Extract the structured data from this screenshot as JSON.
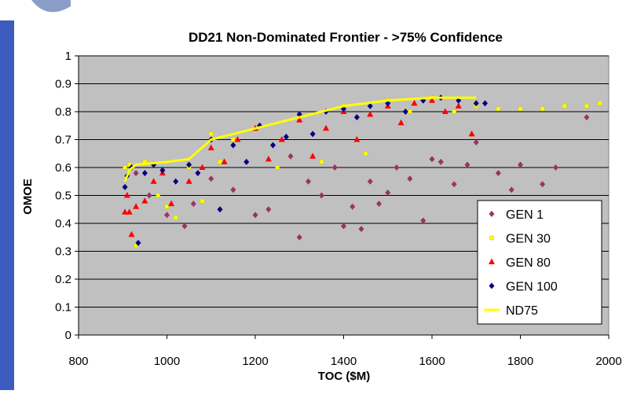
{
  "chart_data": {
    "type": "scatter",
    "title": "DD21 Non-Dominated Frontier - >75% Confidence",
    "x_label": "TOC ($M)",
    "y_label": "OMOE",
    "xlim": [
      800,
      2000
    ],
    "ylim": [
      0,
      1
    ],
    "xticks": [
      800,
      1000,
      1200,
      1400,
      1600,
      1800,
      2000
    ],
    "yticks": [
      0,
      0.1,
      0.2,
      0.3,
      0.4,
      0.5,
      0.6,
      0.7,
      0.8,
      0.9,
      1
    ],
    "grid": true,
    "legend": "lower right",
    "series": [
      {
        "name": "GEN 1",
        "color": "#993366",
        "marker": "diamond",
        "x": [
          930,
          960,
          1000,
          1040,
          1060,
          1100,
          1150,
          1200,
          1230,
          1280,
          1300,
          1320,
          1350,
          1380,
          1400,
          1420,
          1440,
          1460,
          1480,
          1500,
          1520,
          1550,
          1580,
          1600,
          1620,
          1650,
          1680,
          1700,
          1750,
          1780,
          1800,
          1850,
          1880,
          1950
        ],
        "values": [
          0.58,
          0.5,
          0.43,
          0.39,
          0.47,
          0.56,
          0.52,
          0.43,
          0.45,
          0.64,
          0.35,
          0.55,
          0.5,
          0.6,
          0.39,
          0.46,
          0.38,
          0.55,
          0.47,
          0.51,
          0.6,
          0.56,
          0.41,
          0.63,
          0.62,
          0.54,
          0.61,
          0.69,
          0.58,
          0.52,
          0.61,
          0.54,
          0.6,
          0.78
        ]
      },
      {
        "name": "GEN 30",
        "color": "#ffff00",
        "marker": "square",
        "x": [
          905,
          915,
          930,
          950,
          980,
          1000,
          1020,
          1050,
          1080,
          1100,
          1120,
          1150,
          1200,
          1250,
          1300,
          1350,
          1400,
          1450,
          1500,
          1550,
          1600,
          1650,
          1700,
          1750,
          1800,
          1850,
          1900,
          1950,
          1980
        ],
        "values": [
          0.6,
          0.61,
          0.32,
          0.62,
          0.5,
          0.46,
          0.42,
          0.6,
          0.48,
          0.72,
          0.62,
          0.7,
          0.74,
          0.6,
          0.78,
          0.62,
          0.82,
          0.65,
          0.84,
          0.8,
          0.85,
          0.8,
          0.82,
          0.81,
          0.81,
          0.81,
          0.82,
          0.82,
          0.83
        ]
      },
      {
        "name": "GEN 80",
        "color": "#ff0000",
        "marker": "triangle",
        "x": [
          905,
          910,
          915,
          920,
          930,
          950,
          970,
          990,
          1010,
          1050,
          1080,
          1100,
          1130,
          1160,
          1200,
          1230,
          1260,
          1300,
          1330,
          1360,
          1400,
          1430,
          1460,
          1500,
          1530,
          1560,
          1600,
          1630,
          1660,
          1690
        ],
        "values": [
          0.44,
          0.5,
          0.44,
          0.36,
          0.46,
          0.48,
          0.55,
          0.58,
          0.47,
          0.55,
          0.6,
          0.67,
          0.62,
          0.7,
          0.74,
          0.63,
          0.7,
          0.77,
          0.64,
          0.74,
          0.8,
          0.7,
          0.79,
          0.82,
          0.76,
          0.83,
          0.84,
          0.8,
          0.82,
          0.72
        ]
      },
      {
        "name": "GEN 100",
        "color": "#000080",
        "marker": "diamond",
        "x": [
          905,
          910,
          920,
          935,
          950,
          970,
          990,
          1020,
          1050,
          1070,
          1100,
          1120,
          1150,
          1180,
          1210,
          1240,
          1270,
          1300,
          1330,
          1360,
          1400,
          1430,
          1460,
          1500,
          1540,
          1580,
          1620,
          1660,
          1700,
          1720
        ],
        "values": [
          0.53,
          0.57,
          0.6,
          0.33,
          0.58,
          0.61,
          0.59,
          0.55,
          0.61,
          0.58,
          0.7,
          0.45,
          0.68,
          0.62,
          0.75,
          0.68,
          0.71,
          0.79,
          0.72,
          0.8,
          0.81,
          0.78,
          0.82,
          0.83,
          0.8,
          0.84,
          0.85,
          0.84,
          0.83,
          0.83
        ]
      },
      {
        "name": "ND75",
        "color": "#ffff00",
        "marker": "line",
        "x": [
          905,
          915,
          930,
          1000,
          1050,
          1100,
          1200,
          1300,
          1400,
          1500,
          1600,
          1700
        ],
        "values": [
          0.55,
          0.59,
          0.61,
          0.62,
          0.63,
          0.7,
          0.74,
          0.78,
          0.82,
          0.84,
          0.85,
          0.85
        ]
      }
    ]
  }
}
